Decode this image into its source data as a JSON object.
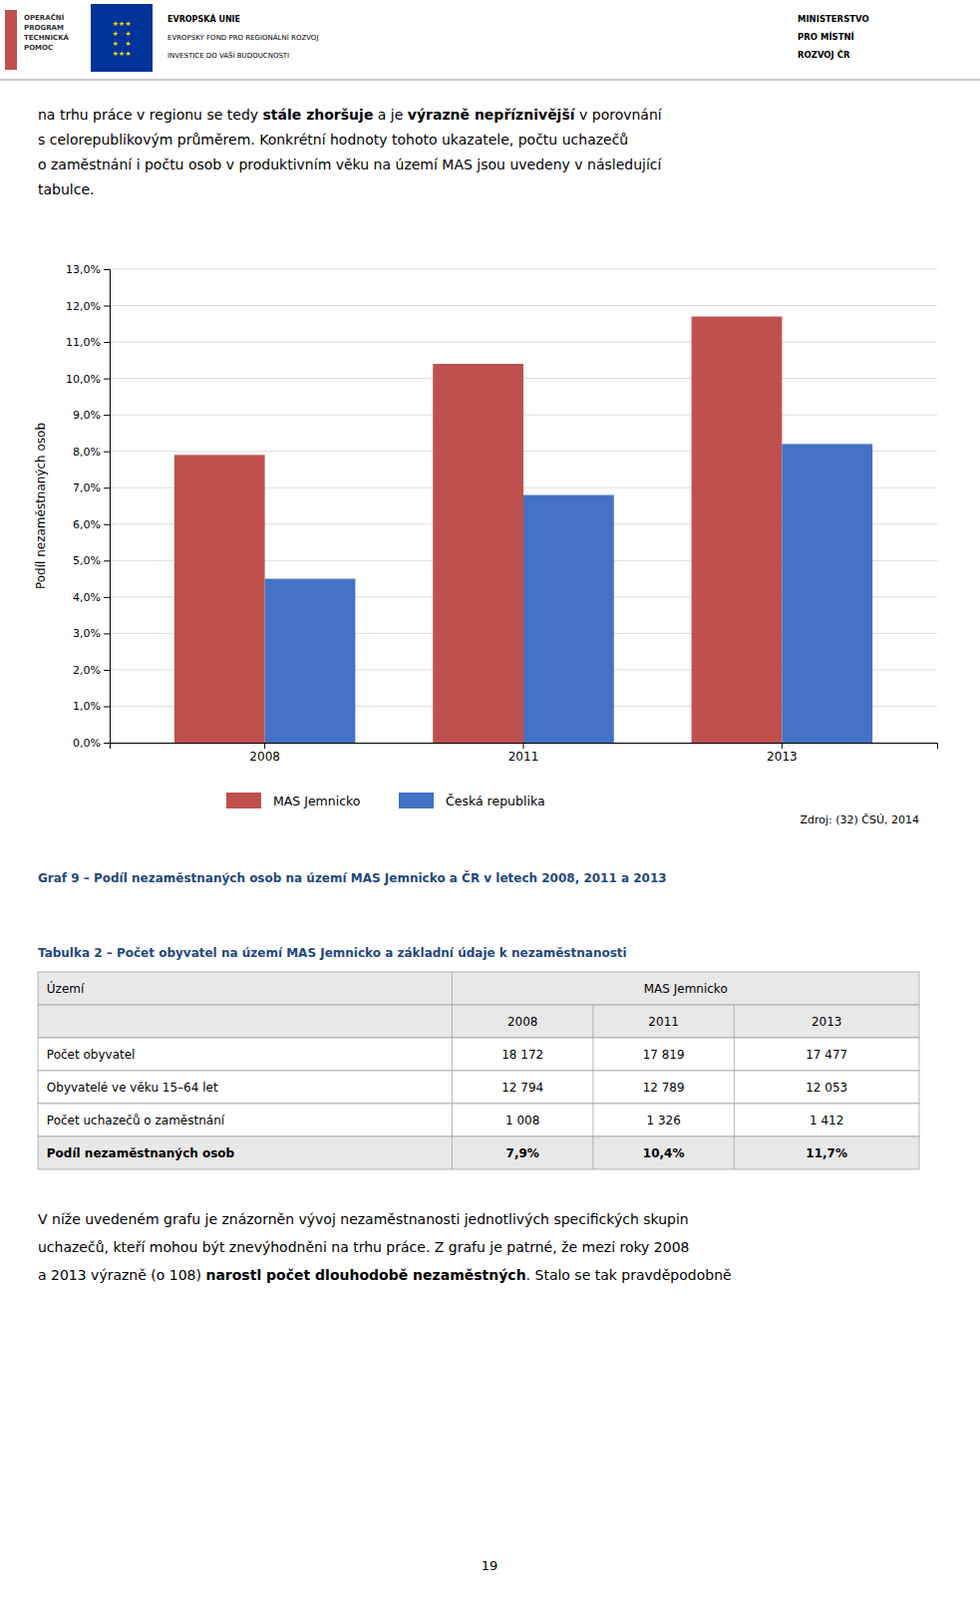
{
  "header": {
    "program": [
      "OPERAČNÍ",
      "PROGRAM",
      "TECHNICKÁ",
      "POMOC"
    ],
    "flag": [
      "★★★",
      "★   ★",
      "★   ★",
      "★★★"
    ],
    "eu": [
      "EVROPSKÁ UNIE",
      "EVROPSKÝ FOND PRO REGIONÁLNÍ ROZVOJ",
      "INVESTICE DO VAŠÍ BUDOUCNOSTI"
    ],
    "ministry": [
      "MINISTERSTVO",
      "PRO MÍSTNÍ",
      "ROZVOJ ČR"
    ]
  },
  "intro": [
    [
      {
        "text": "na trhu práce v regionu se tedy ",
        "bold": false
      },
      {
        "text": "stále zhoršuje",
        "bold": true
      },
      {
        "text": " a je ",
        "bold": false
      },
      {
        "text": "výrazně nepříznivější",
        "bold": true
      },
      {
        "text": " v porovnání",
        "bold": false
      }
    ],
    [
      {
        "text": "s celorepublikovým průměrem. Konkrétní hodnoty tohoto ukazatele, počtu uchazečů",
        "bold": false
      }
    ],
    [
      {
        "text": "o zaměstnání i počtu osob v produktivním věku na území MAS jsou uvedeny v následující",
        "bold": false
      }
    ],
    [
      {
        "text": "tabulce.",
        "bold": false
      }
    ]
  ],
  "chart_data": {
    "type": "bar",
    "title": "Graf 9 – Podíl nezaměstnaných osob na území MAS Jemnicko a ČR v letech 2008, 2011 a 2013",
    "y_label": "Podíl nezaměstnaných osob",
    "categories": [
      "2008",
      "2011",
      "2013"
    ],
    "series": [
      {
        "name": "MAS Jemnicko",
        "color": "#C0504D",
        "values": [
          0.079,
          0.104,
          0.117
        ]
      },
      {
        "name": "Česká republika",
        "color": "#4472C4",
        "values": [
          0.045,
          0.068,
          0.082
        ]
      }
    ],
    "ylim": [
      0,
      0.13
    ],
    "yticks": [
      {
        "value": 0,
        "label": "0,0%"
      },
      {
        "value": 0.01,
        "label": "1,0%"
      },
      {
        "value": 0.02,
        "label": "2,0%"
      },
      {
        "value": 0.03,
        "label": "3,0%"
      },
      {
        "value": 0.04,
        "label": "4,0%"
      },
      {
        "value": 0.05,
        "label": "5,0%"
      },
      {
        "value": 0.06,
        "label": "6,0%"
      },
      {
        "value": 0.07,
        "label": "7,0%"
      },
      {
        "value": 0.08,
        "label": "8,0%"
      },
      {
        "value": 0.09,
        "label": "9,0%"
      },
      {
        "value": 0.1,
        "label": "10,0%"
      },
      {
        "value": 0.11,
        "label": "11,0%"
      },
      {
        "value": 0.12,
        "label": "12,0%"
      },
      {
        "value": 0.13,
        "label": "13,0%"
      }
    ],
    "grid": true,
    "legend": "bottom",
    "annotations": [
      "Zdroj: (32) ČSÚ, 2014"
    ]
  },
  "table": {
    "title": "Tabulka 2 – Počet obyvatel na území MAS Jemnicko a základní údaje k nezaměstnanosti",
    "header": [
      "Území",
      "MAS Jemnicko"
    ],
    "columns": [
      "2008",
      "2011",
      "2013"
    ],
    "rows": [
      [
        "Počet obyvatel",
        "18 172",
        "17 819",
        "17 477"
      ],
      [
        "Obyvatelé ve věku 15–64 let",
        "12 794",
        "12 789",
        "12 053"
      ],
      [
        "Počet uchazečů o zaměstnání",
        "1 008",
        "1 326",
        "1 412"
      ],
      [
        "Podíl nezaměstnaných osob",
        "7,9%",
        "10,4%",
        "11,7%"
      ]
    ]
  },
  "closing": [
    [
      {
        "text": "V níže uvedeném grafu je znázorněn vývoj nezaměstnanosti jednotlivých specifických skupin",
        "bold": false
      }
    ],
    [
      {
        "text": "uchazečů, kteří mohou být znevýhodněni na trhu práce. Z grafu je patrné, že mezi roky 2008",
        "bold": false
      }
    ],
    [
      {
        "text": "a 2013 výrazně (o 108) ",
        "bold": false
      },
      {
        "text": "narostl počet dlouhodobě nezaměstných",
        "bold": true
      },
      {
        "text": ". Stalo se tak pravděpodobně",
        "bold": false
      }
    ]
  ],
  "page_number": "19"
}
